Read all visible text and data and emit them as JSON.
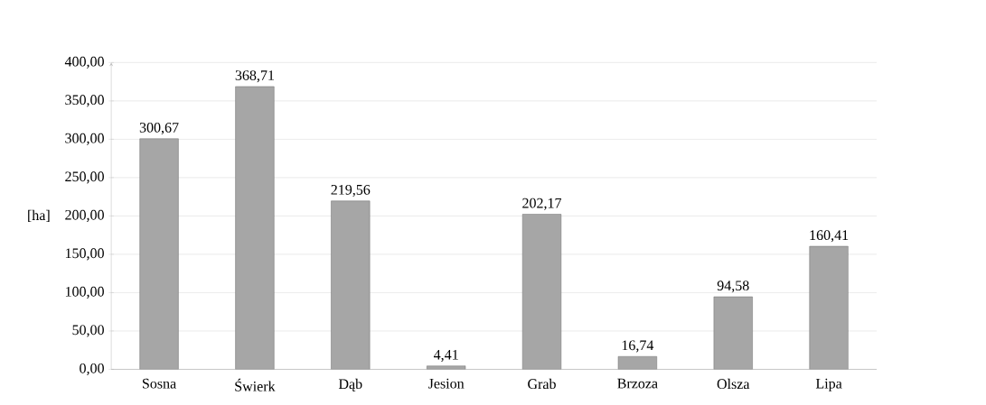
{
  "chart_data": {
    "type": "bar",
    "ylabel": "[ha]",
    "categories": [
      "Sosna",
      "Świerk",
      "Dąb",
      "Jesion",
      "Grab",
      "Brzoza",
      "Olsza",
      "Lipa"
    ],
    "values": [
      300.67,
      368.71,
      219.56,
      4.41,
      202.17,
      16.74,
      94.58,
      160.41
    ],
    "value_labels": [
      "300,67",
      "368,71",
      "219,56",
      "4,41",
      "202,17",
      "16,74",
      "94,58",
      "160,41"
    ],
    "color": "#a6a6a6",
    "ylim": [
      0,
      400
    ],
    "yticks": [
      {
        "value": 0,
        "label": "0,00"
      },
      {
        "value": 50,
        "label": "50,00"
      },
      {
        "value": 100,
        "label": "100,00"
      },
      {
        "value": 150,
        "label": "150,00"
      },
      {
        "value": 200,
        "label": "200,00"
      },
      {
        "value": 250,
        "label": "250,00"
      },
      {
        "value": 300,
        "label": "300,00"
      },
      {
        "value": 350,
        "label": "350,00"
      },
      {
        "value": 400,
        "label": "400,00"
      }
    ],
    "grid": "y"
  }
}
